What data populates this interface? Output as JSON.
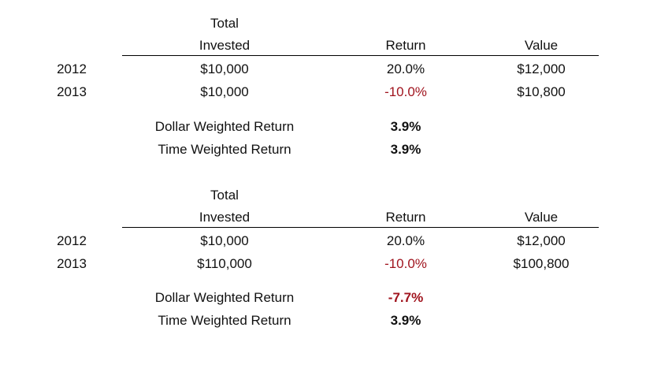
{
  "tables": [
    {
      "header": {
        "total": "Total",
        "invested": "Invested",
        "return": "Return",
        "value": "Value"
      },
      "rows": [
        {
          "year": "2012",
          "invested": "$10,000",
          "return": "20.0%",
          "value": "$12,000"
        },
        {
          "year": "2013",
          "invested": "$10,000",
          "return": "-10.0%",
          "value": "$10,800"
        }
      ],
      "summary": [
        {
          "label": "Dollar Weighted Return",
          "value": "3.9%"
        },
        {
          "label": "Time Weighted Return",
          "value": "3.9%"
        }
      ]
    },
    {
      "header": {
        "total": "Total",
        "invested": "Invested",
        "return": "Return",
        "value": "Value"
      },
      "rows": [
        {
          "year": "2012",
          "invested": "$10,000",
          "return": "20.0%",
          "value": "$12,000"
        },
        {
          "year": "2013",
          "invested": "$110,000",
          "return": "-10.0%",
          "value": "$100,800"
        }
      ],
      "summary": [
        {
          "label": "Dollar Weighted Return",
          "value": "-7.7%"
        },
        {
          "label": "Time Weighted Return",
          "value": "3.9%"
        }
      ]
    }
  ],
  "colors": {
    "negative": "#a0141e",
    "text": "#111111",
    "rule": "#000000"
  }
}
